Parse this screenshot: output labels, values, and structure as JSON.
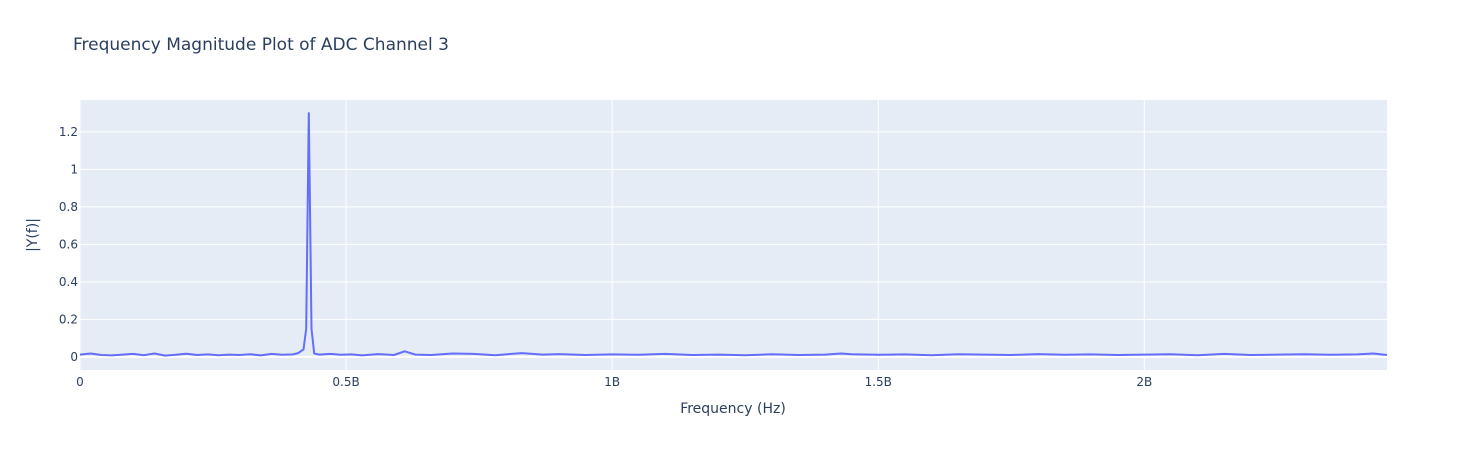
{
  "chart_data": {
    "type": "line",
    "title": "Frequency Magnitude Plot of ADC Channel 3",
    "xlabel": "Frequency (Hz)",
    "ylabel": "|Y(f)|",
    "xlim": [
      0,
      2456000000
    ],
    "ylim": [
      -0.07,
      1.37
    ],
    "grid": true,
    "x_ticks": [
      {
        "value": 0,
        "label": "0"
      },
      {
        "value": 500000000,
        "label": "0.5B"
      },
      {
        "value": 1000000000,
        "label": "1B"
      },
      {
        "value": 1500000000,
        "label": "1.5B"
      },
      {
        "value": 2000000000,
        "label": "2B"
      }
    ],
    "y_ticks": [
      {
        "value": 0,
        "label": "0"
      },
      {
        "value": 0.2,
        "label": "0.2"
      },
      {
        "value": 0.4,
        "label": "0.4"
      },
      {
        "value": 0.6,
        "label": "0.6"
      },
      {
        "value": 0.8,
        "label": "0.8"
      },
      {
        "value": 1,
        "label": "1"
      },
      {
        "value": 1.2,
        "label": "1.2"
      }
    ],
    "series": [
      {
        "color": "#636efa",
        "x": [
          0,
          20000000,
          40000000,
          60000000,
          80000000,
          100000000,
          120000000,
          140000000,
          160000000,
          180000000,
          200000000,
          220000000,
          240000000,
          260000000,
          280000000,
          300000000,
          320000000,
          340000000,
          360000000,
          380000000,
          400000000,
          410000000,
          420000000,
          425000000,
          430000000,
          435000000,
          440000000,
          450000000,
          470000000,
          490000000,
          510000000,
          530000000,
          560000000,
          590000000,
          610000000,
          630000000,
          660000000,
          700000000,
          740000000,
          780000000,
          830000000,
          870000000,
          900000000,
          950000000,
          1000000000,
          1050000000,
          1100000000,
          1150000000,
          1200000000,
          1250000000,
          1300000000,
          1350000000,
          1400000000,
          1430000000,
          1450000000,
          1500000000,
          1550000000,
          1600000000,
          1650000000,
          1700000000,
          1750000000,
          1800000000,
          1850000000,
          1900000000,
          1950000000,
          2000000000,
          2050000000,
          2100000000,
          2150000000,
          2200000000,
          2250000000,
          2300000000,
          2350000000,
          2400000000,
          2430000000,
          2456000000
        ],
        "y": [
          0.012,
          0.018,
          0.01,
          0.008,
          0.012,
          0.016,
          0.009,
          0.018,
          0.007,
          0.011,
          0.017,
          0.01,
          0.013,
          0.009,
          0.012,
          0.01,
          0.014,
          0.008,
          0.016,
          0.011,
          0.013,
          0.02,
          0.04,
          0.15,
          1.3,
          0.15,
          0.018,
          0.012,
          0.016,
          0.011,
          0.013,
          0.008,
          0.015,
          0.01,
          0.03,
          0.012,
          0.01,
          0.018,
          0.016,
          0.009,
          0.02,
          0.012,
          0.015,
          0.01,
          0.013,
          0.011,
          0.016,
          0.01,
          0.012,
          0.009,
          0.014,
          0.01,
          0.012,
          0.018,
          0.014,
          0.011,
          0.013,
          0.009,
          0.014,
          0.012,
          0.01,
          0.015,
          0.011,
          0.013,
          0.01,
          0.012,
          0.014,
          0.009,
          0.016,
          0.01,
          0.012,
          0.014,
          0.011,
          0.013,
          0.018,
          0.01
        ]
      }
    ]
  }
}
